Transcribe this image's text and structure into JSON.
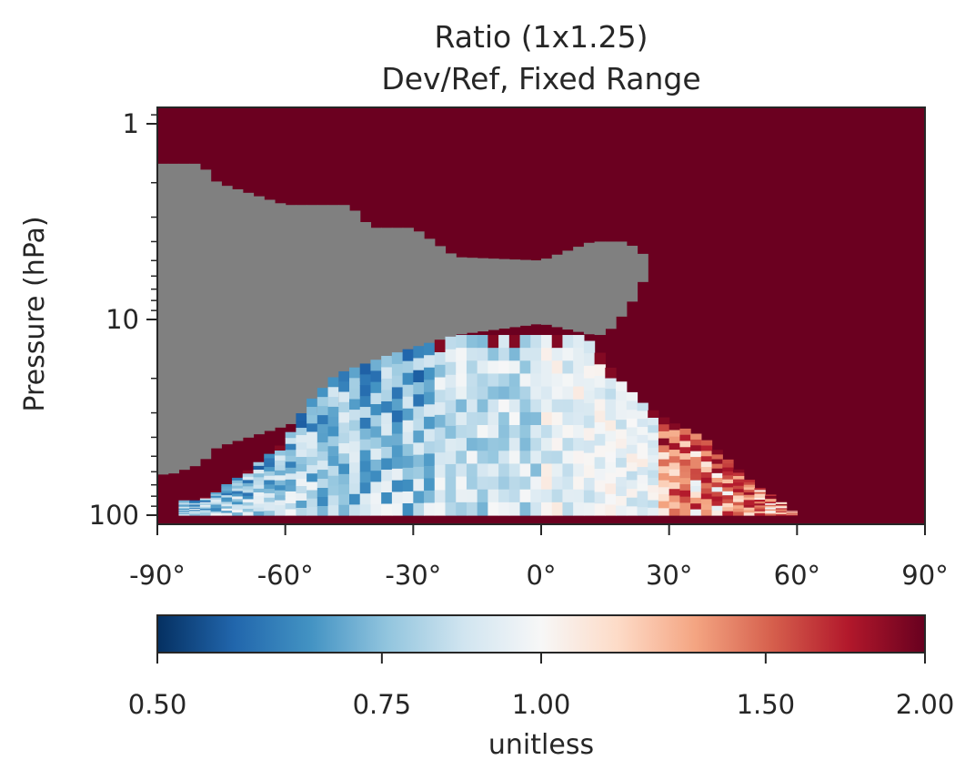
{
  "chart_data": {
    "type": "heatmap",
    "title_lines": [
      "Ratio (1x1.25)",
      "Dev/Ref, Fixed Range"
    ],
    "ylabel": "Pressure (hPa)",
    "x_ticks": [
      -90,
      -60,
      -30,
      0,
      30,
      60,
      90
    ],
    "x_tick_labels": [
      "-90°",
      "-60°",
      "-30°",
      "0°",
      "30°",
      "60°",
      "90°"
    ],
    "xlim": [
      -90,
      90
    ],
    "y_scale": "log",
    "y_inverted": true,
    "ylim": [
      100,
      0.9
    ],
    "y_ticks": [
      1,
      10,
      100
    ],
    "y_tick_labels": [
      "1",
      "10",
      "100"
    ],
    "colorbar": {
      "label": "unitless",
      "scale": "log",
      "range": [
        0.5,
        2.0
      ],
      "ticks": [
        0.5,
        0.75,
        1.0,
        1.5,
        2.0
      ],
      "tick_labels": [
        "0.50",
        "0.75",
        "1.00",
        "1.50",
        "2.00"
      ],
      "colormap": "RdBu_r",
      "colormap_stops": [
        "#053061",
        "#2166ac",
        "#4393c3",
        "#92c5de",
        "#d1e5f0",
        "#f7f7f7",
        "#fddbc7",
        "#f4a582",
        "#d6604d",
        "#b2182b",
        "#67001f"
      ]
    },
    "nan_color": "#808080",
    "region_colors": {
      "above_range": "#6b0020",
      "missing": "#808080"
    },
    "missing_region_boundary": [
      {
        "lat": -90,
        "p_top": 1.6,
        "p_bottom": 62
      },
      {
        "lat": -87,
        "p_top": 1.6,
        "p_bottom": 62
      },
      {
        "lat": -80,
        "p_top": 1.6,
        "p_bottom": 55
      },
      {
        "lat": -76,
        "p_top": 2.0,
        "p_bottom": 45
      },
      {
        "lat": -60,
        "p_top": 2.6,
        "p_bottom": 35
      },
      {
        "lat": -45,
        "p_top": 2.6,
        "p_bottom": 27
      },
      {
        "lat": -40,
        "p_top": 3.4,
        "p_bottom": 19
      },
      {
        "lat": -30,
        "p_top": 3.4,
        "p_bottom": 14
      },
      {
        "lat": -20,
        "p_top": 4.8,
        "p_bottom": 12
      },
      {
        "lat": 0,
        "p_top": 5.0,
        "p_bottom": 10.5
      },
      {
        "lat": 12,
        "p_top": 4.0,
        "p_bottom": 12
      },
      {
        "lat": 15,
        "p_top": 4.0,
        "p_bottom": 12
      },
      {
        "lat": 20,
        "p_top": 4.0,
        "p_bottom": 9
      },
      {
        "lat": 23,
        "p_top": 4.5,
        "p_bottom": 7
      },
      {
        "lat": 26,
        "p_top": 5.0,
        "p_bottom": 5
      }
    ],
    "valid_region_boundary": [
      {
        "lat": -80,
        "p_top": 84
      },
      {
        "lat": -70,
        "p_top": 62
      },
      {
        "lat": -60,
        "p_top": 42
      },
      {
        "lat": -55,
        "p_top": 27
      },
      {
        "lat": -48,
        "p_top": 19
      },
      {
        "lat": -35,
        "p_top": 15
      },
      {
        "lat": -20,
        "p_top": 12
      },
      {
        "lat": 0,
        "p_top": 12
      },
      {
        "lat": 10,
        "p_top": 12
      },
      {
        "lat": 14,
        "p_top": 15
      },
      {
        "lat": 18,
        "p_top": 20
      },
      {
        "lat": 24,
        "p_top": 27
      },
      {
        "lat": 30,
        "p_top": 33
      },
      {
        "lat": 38,
        "p_top": 40
      },
      {
        "lat": 45,
        "p_top": 55
      },
      {
        "lat": 50,
        "p_top": 70
      },
      {
        "lat": 56,
        "p_top": 84
      },
      {
        "lat": 60,
        "p_top": 100
      }
    ]
  }
}
